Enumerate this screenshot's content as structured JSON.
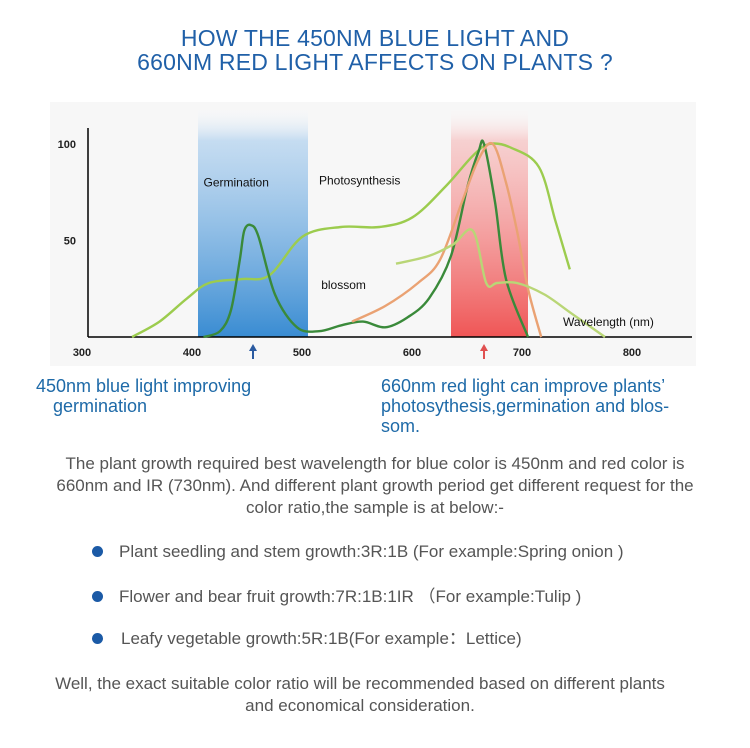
{
  "title": {
    "line1": "HOW THE 450NM BLUE LIGHT AND",
    "line2": "660NM RED LIGHT AFFECTS ON PLANTS ?"
  },
  "chart_data": {
    "type": "line",
    "title": "",
    "xlabel": "Wavelength (nm)",
    "ylabel": "",
    "xlim": [
      300,
      800
    ],
    "ylim": [
      0,
      100
    ],
    "x_ticks": [
      300,
      400,
      500,
      600,
      700,
      800
    ],
    "y_ticks": [
      50,
      100
    ],
    "grid": false,
    "bands": [
      {
        "x0": 400,
        "x1": 500,
        "color": "#3f8fd2"
      },
      {
        "x0": 630,
        "x1": 700,
        "color": "#f06a6a"
      }
    ],
    "arrows": [
      {
        "x": 450,
        "color": "#2a5aa0"
      },
      {
        "x": 660,
        "color": "#e05050"
      }
    ],
    "annotations": [
      {
        "text": "Germination",
        "x": 405,
        "y": 78
      },
      {
        "text": "Photosynthesis",
        "x": 510,
        "y": 79
      },
      {
        "text": "blossom",
        "x": 512,
        "y": 25
      }
    ],
    "series": [
      {
        "color": "#9ccc4e",
        "x": [
          340,
          365,
          390,
          410,
          440,
          465,
          495,
          530,
          565,
          595,
          625,
          650,
          665,
          685,
          710,
          725,
          738
        ],
        "y": [
          0,
          8,
          20,
          28,
          30,
          32,
          52,
          57,
          57,
          62,
          78,
          94,
          100,
          98,
          88,
          60,
          35
        ]
      },
      {
        "color": "#3a8a3a",
        "x": [
          405,
          420,
          430,
          438,
          442,
          448,
          455,
          470,
          490,
          510,
          530,
          550,
          570,
          590,
          610,
          630,
          645,
          655,
          660,
          670,
          680,
          700
        ],
        "y": [
          0,
          3,
          14,
          40,
          55,
          58,
          52,
          22,
          5,
          3,
          6,
          8,
          5,
          10,
          20,
          42,
          78,
          96,
          100,
          70,
          30,
          0
        ]
      },
      {
        "color": "#eaa273",
        "x": [
          540,
          570,
          600,
          620,
          640,
          655,
          668,
          680,
          690,
          700,
          712
        ],
        "y": [
          8,
          16,
          28,
          40,
          70,
          92,
          100,
          80,
          55,
          25,
          0
        ]
      },
      {
        "color": "#b9d676",
        "x": [
          580,
          610,
          632,
          650,
          662,
          672,
          690,
          715,
          740,
          770
        ],
        "y": [
          38,
          42,
          48,
          55,
          28,
          28,
          28,
          22,
          12,
          0
        ]
      }
    ]
  },
  "captions": {
    "left_line1": "450nm blue light improving",
    "left_line2": "germination",
    "right_line1": "660nm red light can improve plants’",
    "right_line2": "photosythesis,germination and blos-",
    "right_line3": "som."
  },
  "intro": "The plant growth required best wavelength for blue color is 450nm and red color is 660nm and IR (730nm). And different plant growth period get different request for the color ratio,the sample is at below:-",
  "bullets": [
    "Plant seedling and stem growth:3R:1B (For example:Spring onion )",
    "Flower and bear fruit growth:7R:1B:1IR （For example:Tulip )",
    "Leafy vegetable growth:5R:1B(For example：Lettice)"
  ],
  "outro": "Well, the exact suitable color ratio will be recommended based on different plants and economical consideration."
}
